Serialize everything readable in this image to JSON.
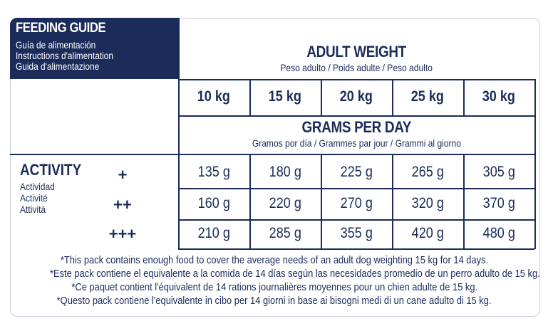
{
  "title": {
    "main": "FEEDING GUIDE",
    "lines": [
      "Guía de alimentación",
      "Instructions d'alimentation",
      "Guida d'alimentazione"
    ]
  },
  "weight_header": {
    "title": "ADULT WEIGHT",
    "subtitle": "Peso adulto / Poids adulte / Peso adulto"
  },
  "weights": [
    "10 kg",
    "15 kg",
    "20 kg",
    "25 kg",
    "30 kg"
  ],
  "grams_header": {
    "title": "GRAMS PER DAY",
    "subtitle": "Gramos por día / Grammes par jour / Grammi al giorno"
  },
  "activity": {
    "title": "ACTIVITY",
    "lines": [
      "Actividad",
      "Activité",
      "Attività"
    ]
  },
  "rows": [
    {
      "level": "+",
      "values": [
        "135 g",
        "180 g",
        "225 g",
        "265 g",
        "305 g"
      ]
    },
    {
      "level": "++",
      "values": [
        "160 g",
        "220 g",
        "270 g",
        "320 g",
        "370 g"
      ]
    },
    {
      "level": "+++",
      "values": [
        "210 g",
        "285 g",
        "355 g",
        "420 g",
        "480 g"
      ]
    }
  ],
  "notes": [
    "*This pack contains enough food to cover the average needs of an adult dog weighting 15 kg for 14 days.",
    "*Este pack contiene el equivalente a la comida de 14 días según las necesidades promedio de un perro adulto de 15 kg.",
    "*Ce paquet contient l'équivalent de 14 rations journalières moyennes pour un chien adulte de 15 kg.",
    "*Questo pack contiene l'equivalente in cibo per 14 giorni in base ai bisogni medi di un cane adulto di 15 kg."
  ],
  "colors": {
    "navy": "#1b2b5a",
    "border": "#c9cdd6"
  }
}
